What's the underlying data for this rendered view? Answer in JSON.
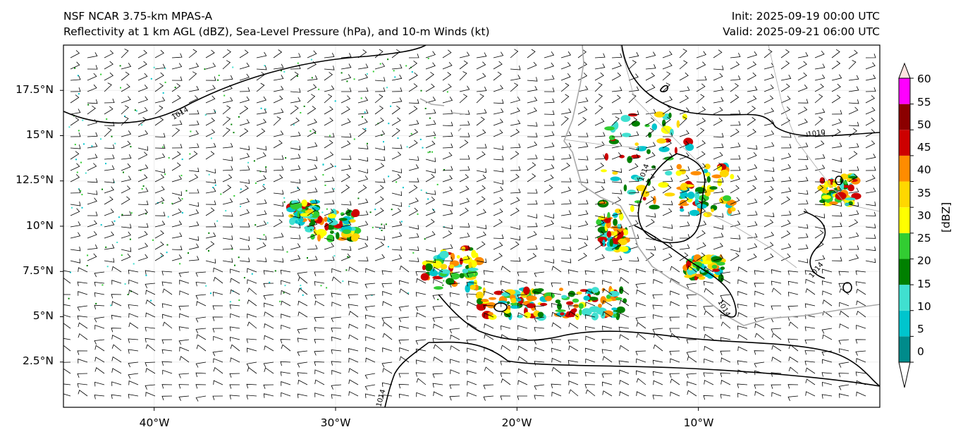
{
  "header": {
    "model": "NSF NCAR 3.75-km MPAS-A",
    "fields": "Reflectivity at 1 km AGL (dBZ), Sea-Level Pressure (hPa), and 10-m Winds (kt)",
    "init": "Init: 2025-09-19 00:00 UTC",
    "valid": "Valid: 2025-09-21 06:00 UTC"
  },
  "map": {
    "lon_range": [
      -45,
      0
    ],
    "lat_range": [
      0,
      20
    ],
    "lat_labels": [
      "17.5°N",
      "15°N",
      "12.5°N",
      "10°N",
      "7.5°N",
      "5°N",
      "2.5°N"
    ],
    "lon_labels": [
      "40°W",
      "30°W",
      "20°W",
      "10°W"
    ],
    "isobar_labels": [
      "1014",
      "1010",
      "1014",
      "1014",
      "1014",
      "1014"
    ],
    "coastline_color": "#a9a9a9",
    "isobar_color": "#000000"
  },
  "colorbar": {
    "unit": "[dBZ]",
    "ticks": [
      "60",
      "55",
      "50",
      "45",
      "40",
      "35",
      "30",
      "25",
      "20",
      "15",
      "10",
      "5",
      "0"
    ],
    "colors": [
      "#ffffff",
      "#008b8b",
      "#00c5cd",
      "#40e0d0",
      "#008000",
      "#32cd32",
      "#ffff00",
      "#ffd700",
      "#ff8c00",
      "#cd0000",
      "#8b0000",
      "#ff00ff",
      "#ffe4e1"
    ]
  }
}
